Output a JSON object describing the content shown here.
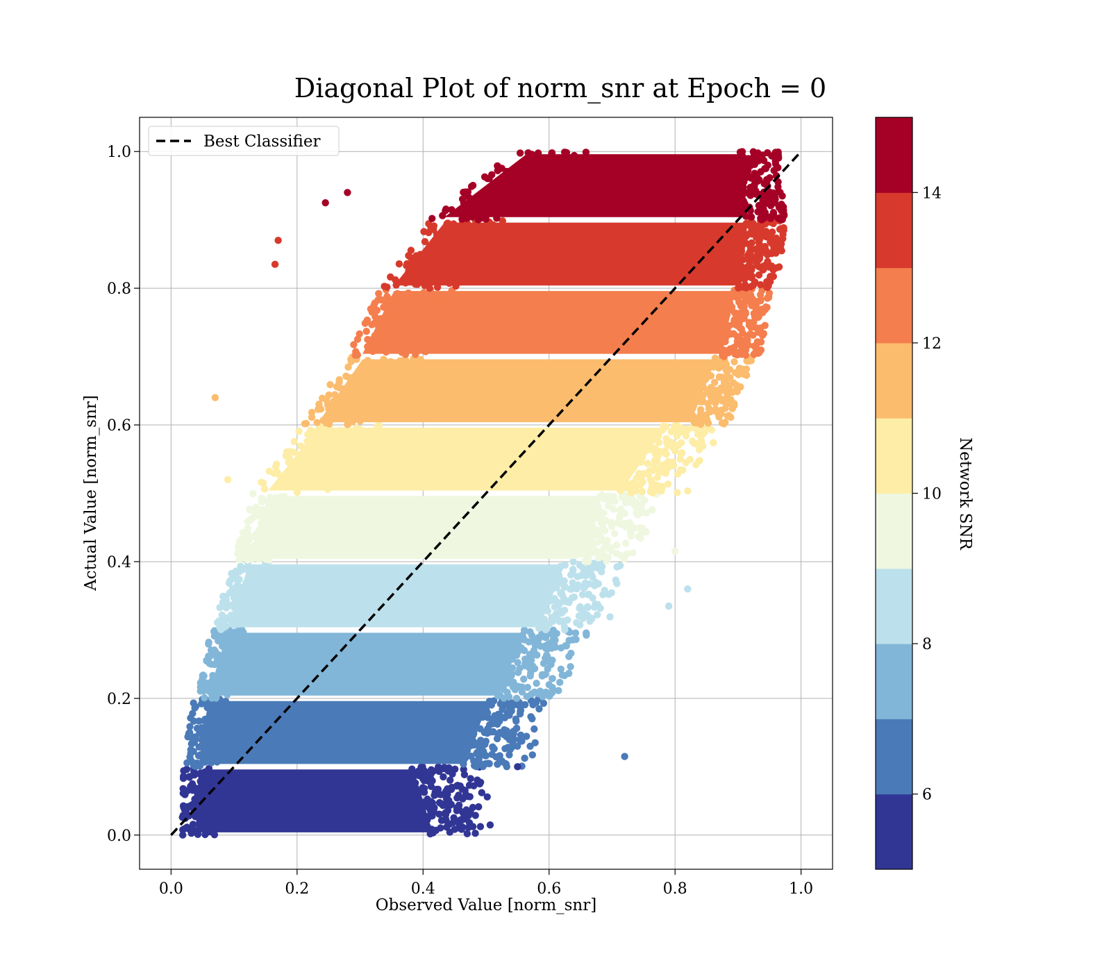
{
  "chart_data": {
    "type": "scatter",
    "title": "Diagonal Plot of norm_snr at Epoch = 0",
    "xlabel": "Observed Value [norm_snr]",
    "ylabel": "Actual Value [norm_snr]",
    "xlim": [
      -0.05,
      1.05
    ],
    "ylim": [
      -0.05,
      1.05
    ],
    "xticks": [
      "0.0",
      "0.2",
      "0.4",
      "0.6",
      "0.8",
      "1.0"
    ],
    "yticks": [
      "0.0",
      "0.2",
      "0.4",
      "0.6",
      "0.8",
      "1.0"
    ],
    "grid": true,
    "legend": {
      "placement": "upper-left",
      "entries": [
        "Best Classifier"
      ]
    },
    "reference_line": {
      "name": "Best Classifier",
      "style": "dashed",
      "color": "#000000",
      "from": [
        0,
        0
      ],
      "to": [
        1,
        1
      ]
    },
    "colorbar": {
      "label": "Network SNR",
      "range": [
        5,
        15
      ],
      "ticks": [
        "6",
        "8",
        "10",
        "12",
        "14"
      ],
      "colors": [
        "#313695",
        "#4a7ab8",
        "#82b6d8",
        "#bde1ec",
        "#eff7e0",
        "#fdeda6",
        "#fbbc6e",
        "#f47e4d",
        "#d73a2c",
        "#a50026"
      ]
    },
    "bands": [
      {
        "snr": 5.5,
        "y": [
          0.0,
          0.1
        ],
        "x_start_at_y": [
          0.025,
          0.03
        ],
        "x_end_at_y": [
          0.45,
          0.42
        ],
        "color": "#313695"
      },
      {
        "snr": 6.5,
        "y": [
          0.1,
          0.2
        ],
        "x_start_at_y": [
          0.03,
          0.045
        ],
        "x_end_at_y": [
          0.5,
          0.54
        ],
        "color": "#4a7ab8"
      },
      {
        "snr": 7.5,
        "y": [
          0.2,
          0.3
        ],
        "x_start_at_y": [
          0.045,
          0.075
        ],
        "x_end_at_y": [
          0.55,
          0.6
        ],
        "color": "#82b6d8"
      },
      {
        "snr": 8.5,
        "y": [
          0.3,
          0.4
        ],
        "x_start_at_y": [
          0.075,
          0.11
        ],
        "x_end_at_y": [
          0.62,
          0.66
        ],
        "color": "#bde1ec"
      },
      {
        "snr": 9.5,
        "y": [
          0.4,
          0.5
        ],
        "x_start_at_y": [
          0.11,
          0.14
        ],
        "x_end_at_y": [
          0.68,
          0.72
        ],
        "color": "#eff7e0"
      },
      {
        "snr": 10.5,
        "y": [
          0.5,
          0.6
        ],
        "x_start_at_y": [
          0.14,
          0.22
        ],
        "x_end_at_y": [
          0.75,
          0.82
        ],
        "color": "#fdeda6"
      },
      {
        "snr": 11.5,
        "y": [
          0.6,
          0.7
        ],
        "x_start_at_y": [
          0.22,
          0.29
        ],
        "x_end_at_y": [
          0.86,
          0.9
        ],
        "color": "#fbbc6e"
      },
      {
        "snr": 12.5,
        "y": [
          0.7,
          0.8
        ],
        "x_start_at_y": [
          0.29,
          0.34
        ],
        "x_end_at_y": [
          0.91,
          0.93
        ],
        "color": "#f47e4d"
      },
      {
        "snr": 13.5,
        "y": [
          0.8,
          0.9
        ],
        "x_start_at_y": [
          0.34,
          0.42
        ],
        "x_end_at_y": [
          0.94,
          0.95
        ],
        "color": "#d73a2c"
      },
      {
        "snr": 14.5,
        "y": [
          0.9,
          1.0
        ],
        "x_start_at_y": [
          0.42,
          0.55
        ],
        "x_end_at_y": [
          0.95,
          0.94
        ],
        "color": "#a50026"
      }
    ],
    "outliers": [
      {
        "x": 0.72,
        "y": 0.115,
        "color": "#4a7ab8"
      },
      {
        "x": 0.82,
        "y": 0.36,
        "color": "#bde1ec"
      },
      {
        "x": 0.79,
        "y": 0.335,
        "color": "#bde1ec"
      },
      {
        "x": 0.17,
        "y": 0.87,
        "color": "#d73a2c"
      },
      {
        "x": 0.165,
        "y": 0.835,
        "color": "#d73a2c"
      },
      {
        "x": 0.245,
        "y": 0.925,
        "color": "#a50026"
      },
      {
        "x": 0.28,
        "y": 0.94,
        "color": "#a50026"
      },
      {
        "x": 0.07,
        "y": 0.64,
        "color": "#fbbc6e"
      },
      {
        "x": 0.47,
        "y": 0.002,
        "color": "#313695"
      },
      {
        "x": 0.49,
        "y": 0.075,
        "color": "#313695"
      },
      {
        "x": 0.55,
        "y": 0.1,
        "color": "#313695"
      },
      {
        "x": 0.57,
        "y": 0.13,
        "color": "#4a7ab8"
      },
      {
        "x": 0.6,
        "y": 0.22,
        "color": "#82b6d8"
      },
      {
        "x": 0.78,
        "y": 0.51,
        "color": "#fdeda6"
      },
      {
        "x": 0.8,
        "y": 0.415,
        "color": "#eff7e0"
      },
      {
        "x": 0.09,
        "y": 0.52,
        "color": "#fdeda6"
      }
    ]
  }
}
